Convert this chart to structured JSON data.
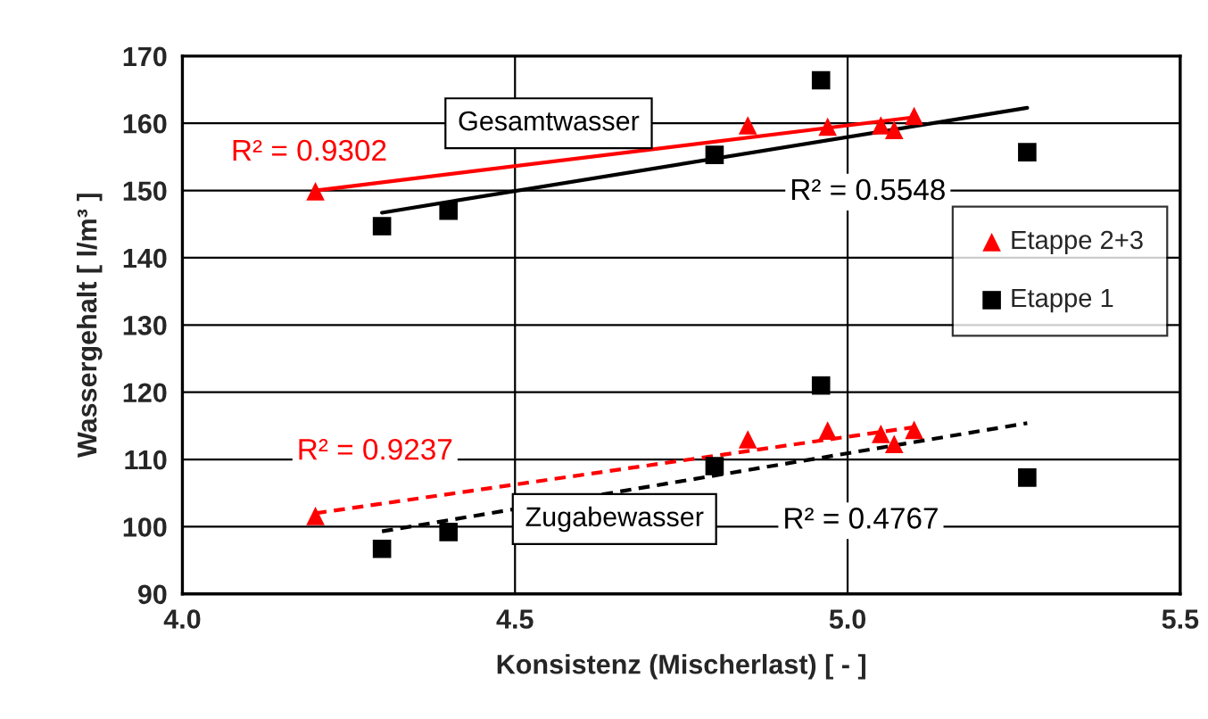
{
  "chart_data": {
    "type": "scatter",
    "xlabel": "Konsistenz (Mischerlast) [ - ]",
    "ylabel": "Wassergehalt [ l/m³ ]",
    "xlim": [
      4.0,
      5.5
    ],
    "xticks": [
      {
        "value": 4.0,
        "label": "4.0"
      },
      {
        "value": 4.5,
        "label": "4.5"
      },
      {
        "value": 5.0,
        "label": "5.0"
      },
      {
        "value": 5.5,
        "label": "5.5"
      }
    ],
    "ylim": [
      90,
      170
    ],
    "yticks": [
      90,
      100,
      110,
      120,
      130,
      140,
      150,
      160,
      170
    ],
    "grid": true,
    "legend": "right",
    "series": [
      {
        "name": "Etappe 2+3",
        "marker": "triangle",
        "color": "#ff0000",
        "x": [
          4.2,
          4.85,
          4.97,
          5.05,
          5.07,
          5.1,
          4.2,
          4.85,
          4.97,
          5.05,
          5.07,
          5.1
        ],
        "values": [
          149.9,
          159.7,
          159.5,
          159.7,
          159.0,
          161.1,
          101.6,
          113.0,
          114.3,
          113.8,
          112.3,
          114.4
        ]
      },
      {
        "name": "Etappe 1",
        "marker": "square",
        "color": "#000000",
        "x": [
          4.3,
          4.4,
          4.8,
          4.96,
          5.27,
          4.3,
          4.4,
          4.8,
          4.96,
          5.27
        ],
        "values": [
          144.7,
          147.0,
          155.3,
          166.4,
          155.7,
          96.7,
          99.2,
          109.0,
          121.0,
          107.3
        ]
      },
      {
        "type": "line",
        "line_style": "solid",
        "color": "#ff0000",
        "x": [
          4.2,
          5.1
        ],
        "values": [
          150.0,
          160.9
        ]
      },
      {
        "type": "line",
        "line_style": "solid",
        "color": "#000000",
        "x": [
          4.3,
          5.27
        ],
        "values": [
          146.7,
          162.3
        ]
      },
      {
        "type": "line",
        "line_style": "dashed",
        "color": "#ff0000",
        "x": [
          4.2,
          5.1
        ],
        "values": [
          102.0,
          114.8
        ]
      },
      {
        "type": "line",
        "line_style": "dashed",
        "color": "#000000",
        "x": [
          4.3,
          5.27
        ],
        "values": [
          99.3,
          115.4
        ]
      }
    ],
    "annotations": [
      "R² = 0.9302",
      "Gesamtwasser",
      "R² = 0.5548",
      "R² = 0.9237",
      "Zugabewasser",
      "R² = 0.4767"
    ]
  }
}
